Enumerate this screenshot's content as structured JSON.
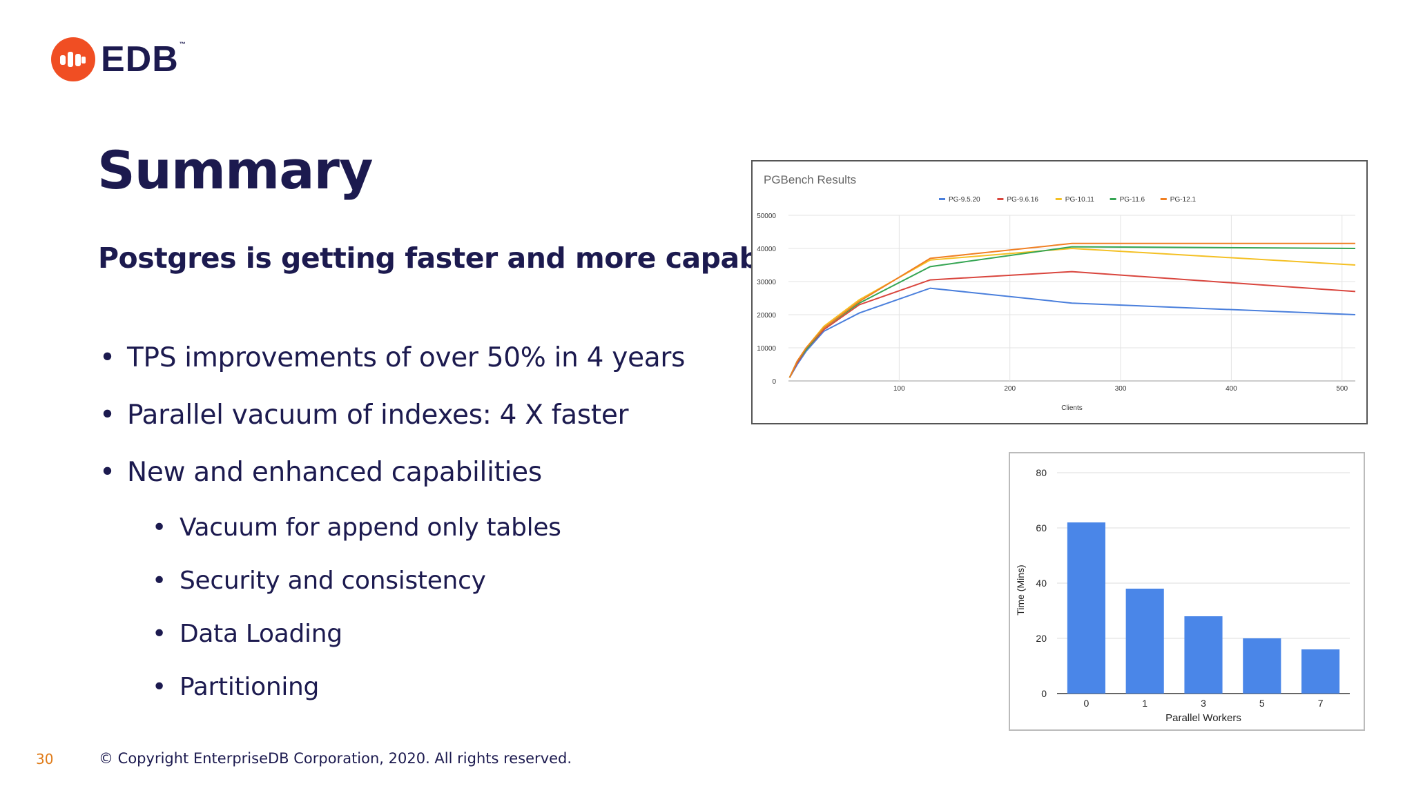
{
  "brand": {
    "name": "EDB",
    "tm": "™",
    "color": "#f04e23"
  },
  "slide": {
    "title": "Summary",
    "subtitle": "Postgres is getting faster and more capable",
    "bullets": [
      "TPS improvements of over 50% in 4 years",
      "Parallel vacuum of indexes: 4 X faster",
      "New and enhanced capabilities"
    ],
    "sub_bullets": [
      "Vacuum for append only tables",
      "Security and consistency",
      "Data Loading",
      "Partitioning"
    ]
  },
  "footer": {
    "page_number": "30",
    "copyright": "© Copyright EnterpriseDB Corporation, 2020. All rights reserved."
  },
  "chart_data": [
    {
      "type": "line",
      "title": "PGBench Results",
      "xlabel": "Clients",
      "ylabel": "",
      "xlim": [
        0,
        512
      ],
      "ylim": [
        0,
        50000
      ],
      "x_ticks": [
        100,
        200,
        300,
        400,
        500
      ],
      "y_ticks": [
        0,
        10000,
        20000,
        30000,
        40000,
        50000
      ],
      "grid": true,
      "legend": "top",
      "series": [
        {
          "name": "PG-9.5.20",
          "color": "#4a7fdc",
          "points": [
            [
              1,
              1000
            ],
            [
              8,
              5000
            ],
            [
              16,
              9000
            ],
            [
              32,
              15000
            ],
            [
              64,
              20500
            ],
            [
              128,
              28000
            ],
            [
              256,
              23500
            ],
            [
              512,
              20000
            ]
          ]
        },
        {
          "name": "PG-9.6.16",
          "color": "#d9453d",
          "points": [
            [
              1,
              1000
            ],
            [
              8,
              5500
            ],
            [
              16,
              9500
            ],
            [
              32,
              15500
            ],
            [
              64,
              23000
            ],
            [
              128,
              30500
            ],
            [
              256,
              33000
            ],
            [
              512,
              27000
            ]
          ]
        },
        {
          "name": "PG-10.11",
          "color": "#f4c024",
          "points": [
            [
              1,
              1000
            ],
            [
              8,
              6000
            ],
            [
              16,
              10000
            ],
            [
              32,
              16500
            ],
            [
              64,
              24500
            ],
            [
              128,
              36500
            ],
            [
              256,
              40000
            ],
            [
              512,
              35000
            ]
          ]
        },
        {
          "name": "PG-11.6",
          "color": "#35a553",
          "points": [
            [
              1,
              1000
            ],
            [
              8,
              6000
            ],
            [
              16,
              9500
            ],
            [
              32,
              16000
            ],
            [
              64,
              23500
            ],
            [
              128,
              34500
            ],
            [
              256,
              40500
            ],
            [
              512,
              40000
            ]
          ]
        },
        {
          "name": "PG-12.1",
          "color": "#f07f22",
          "points": [
            [
              1,
              1000
            ],
            [
              8,
              6000
            ],
            [
              16,
              10000
            ],
            [
              32,
              16000
            ],
            [
              64,
              24000
            ],
            [
              128,
              37000
            ],
            [
              256,
              41500
            ],
            [
              512,
              41500
            ]
          ]
        }
      ]
    },
    {
      "type": "bar",
      "title": "",
      "xlabel": "Parallel Workers",
      "ylabel": "Time (Mins)",
      "categories": [
        "0",
        "1",
        "3",
        "5",
        "7"
      ],
      "values": [
        62,
        38,
        28,
        20,
        16
      ],
      "ylim": [
        0,
        80
      ],
      "y_ticks": [
        0,
        20,
        40,
        60,
        80
      ],
      "grid": true,
      "color": "#4a86e8"
    }
  ]
}
